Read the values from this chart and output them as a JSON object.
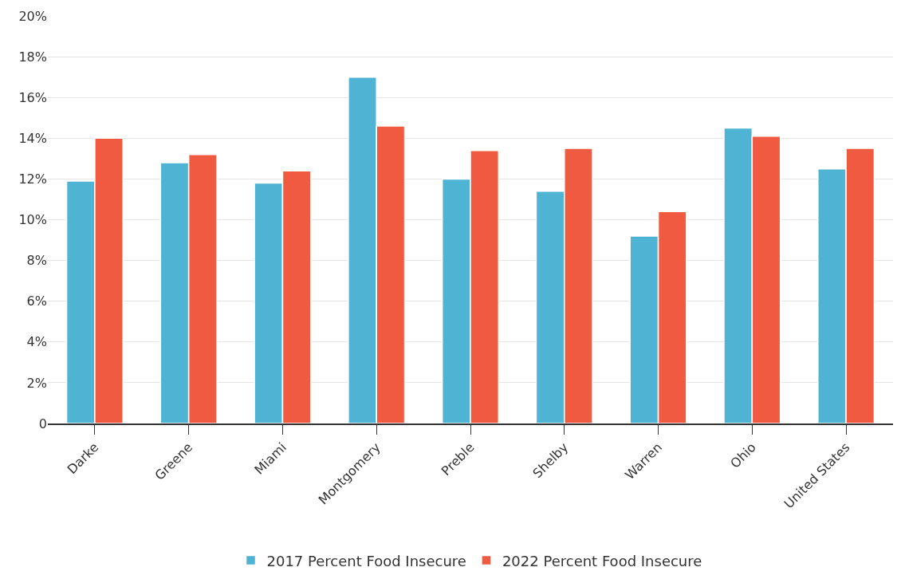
{
  "chart_data": {
    "type": "bar",
    "categories": [
      "Darke",
      "Greene",
      "Miami",
      "Montgomery",
      "Preble",
      "Shelby",
      "Warren",
      "Ohio",
      "United States"
    ],
    "series": [
      {
        "name": "2017 Percent Food Insecure",
        "color": "#4fb3d3",
        "values": [
          11.9,
          12.8,
          11.8,
          17.0,
          12.0,
          11.4,
          9.2,
          14.5,
          12.5
        ]
      },
      {
        "name": "2022 Percent Food Insecure",
        "color": "#f05a40",
        "values": [
          14.0,
          13.2,
          12.4,
          14.6,
          13.4,
          13.5,
          10.4,
          14.1,
          13.5
        ]
      }
    ],
    "ylim": [
      0,
      20
    ],
    "yticks": [
      {
        "value": 0,
        "label": "0"
      },
      {
        "value": 2,
        "label": "2%"
      },
      {
        "value": 4,
        "label": "4%"
      },
      {
        "value": 6,
        "label": "6%"
      },
      {
        "value": 8,
        "label": "8%"
      },
      {
        "value": 10,
        "label": "10%"
      },
      {
        "value": 12,
        "label": "12%"
      },
      {
        "value": 14,
        "label": "14%"
      },
      {
        "value": 16,
        "label": "16%"
      },
      {
        "value": 18,
        "label": "18%"
      },
      {
        "value": 20,
        "label": "20%"
      }
    ],
    "grid": "y",
    "legend": "bottom"
  }
}
